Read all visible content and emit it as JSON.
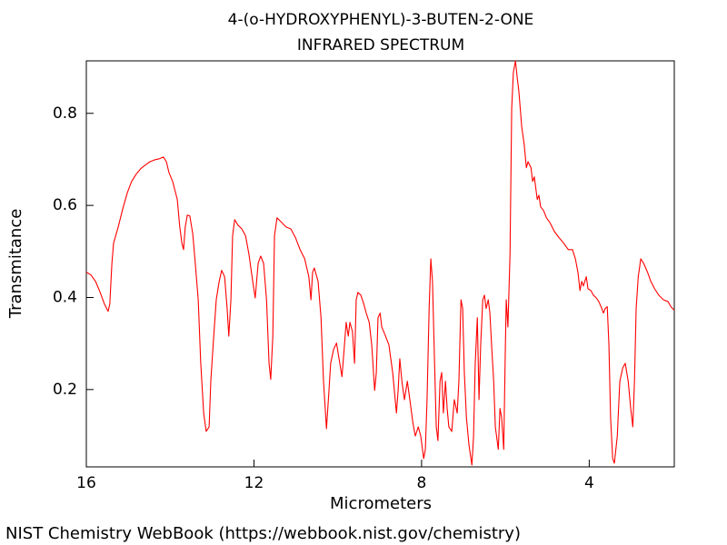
{
  "chart_data": {
    "type": "line",
    "title": "4-(o-HYDROXYPHENYL)-3-BUTEN-2-ONE",
    "subtitle": "INFRARED SPECTRUM",
    "x_label": "Micrometers",
    "y_label": "Transmitance",
    "color": "#ff0000",
    "xlim": [
      16,
      1.97
    ],
    "ylim": [
      0.032,
      0.914
    ],
    "xticks": [
      16,
      12,
      8,
      4
    ],
    "yticks": [
      0.2,
      0.4,
      0.6,
      0.8
    ],
    "x": [
      16.0,
      15.89,
      15.78,
      15.67,
      15.57,
      15.48,
      15.44,
      15.39,
      15.35,
      15.24,
      15.13,
      15.02,
      14.92,
      14.81,
      14.7,
      14.59,
      14.48,
      14.37,
      14.27,
      14.16,
      14.09,
      14.03,
      13.94,
      13.83,
      13.77,
      13.72,
      13.68,
      13.64,
      13.59,
      13.53,
      13.46,
      13.4,
      13.33,
      13.27,
      13.2,
      13.14,
      13.07,
      13.03,
      12.96,
      12.9,
      12.83,
      12.77,
      12.7,
      12.64,
      12.6,
      12.55,
      12.51,
      12.46,
      12.38,
      12.29,
      12.2,
      12.12,
      12.03,
      11.97,
      11.9,
      11.84,
      11.77,
      11.7,
      11.64,
      11.6,
      11.55,
      11.51,
      11.45,
      11.34,
      11.23,
      11.12,
      11.01,
      10.9,
      10.79,
      10.69,
      10.64,
      10.6,
      10.56,
      10.47,
      10.4,
      10.34,
      10.27,
      10.21,
      10.17,
      10.1,
      10.03,
      9.97,
      9.9,
      9.84,
      9.8,
      9.75,
      9.71,
      9.65,
      9.6,
      9.56,
      9.52,
      9.45,
      9.38,
      9.32,
      9.25,
      9.19,
      9.12,
      9.08,
      9.04,
      8.99,
      8.95,
      8.86,
      8.78,
      8.69,
      8.6,
      8.56,
      8.52,
      8.47,
      8.41,
      8.34,
      8.28,
      8.21,
      8.15,
      8.08,
      8.02,
      7.95,
      7.91,
      7.87,
      7.82,
      7.78,
      7.74,
      7.69,
      7.65,
      7.61,
      7.56,
      7.52,
      7.48,
      7.43,
      7.39,
      7.35,
      7.28,
      7.22,
      7.15,
      7.11,
      7.06,
      7.02,
      6.98,
      6.93,
      6.87,
      6.8,
      6.76,
      6.72,
      6.67,
      6.63,
      6.59,
      6.54,
      6.5,
      6.46,
      6.41,
      6.37,
      6.33,
      6.28,
      6.24,
      6.17,
      6.13,
      6.09,
      6.04,
      6.0,
      5.98,
      5.94,
      5.89,
      5.85,
      5.81,
      5.76,
      5.72,
      5.68,
      5.61,
      5.55,
      5.5,
      5.46,
      5.39,
      5.35,
      5.31,
      5.24,
      5.2,
      5.16,
      5.09,
      5.02,
      4.94,
      4.83,
      4.72,
      4.61,
      4.5,
      4.4,
      4.33,
      4.27,
      4.22,
      4.18,
      4.14,
      4.07,
      4.03,
      3.96,
      3.9,
      3.83,
      3.77,
      3.7,
      3.66,
      3.62,
      3.57,
      3.53,
      3.49,
      3.44,
      3.4,
      3.33,
      3.27,
      3.2,
      3.14,
      3.07,
      3.01,
      2.96,
      2.92,
      2.88,
      2.83,
      2.77,
      2.7,
      2.61,
      2.53,
      2.44,
      2.34,
      2.23,
      2.12,
      2.05,
      1.97
    ],
    "values": [
      0.455,
      0.449,
      0.435,
      0.411,
      0.386,
      0.37,
      0.386,
      0.474,
      0.518,
      0.553,
      0.593,
      0.628,
      0.652,
      0.668,
      0.68,
      0.688,
      0.695,
      0.699,
      0.701,
      0.705,
      0.695,
      0.672,
      0.652,
      0.613,
      0.553,
      0.518,
      0.504,
      0.553,
      0.579,
      0.577,
      0.538,
      0.474,
      0.395,
      0.257,
      0.149,
      0.109,
      0.119,
      0.218,
      0.316,
      0.395,
      0.435,
      0.459,
      0.445,
      0.376,
      0.316,
      0.395,
      0.534,
      0.569,
      0.557,
      0.549,
      0.534,
      0.494,
      0.435,
      0.399,
      0.474,
      0.49,
      0.474,
      0.395,
      0.257,
      0.222,
      0.316,
      0.534,
      0.573,
      0.563,
      0.553,
      0.549,
      0.53,
      0.504,
      0.484,
      0.445,
      0.395,
      0.455,
      0.464,
      0.435,
      0.356,
      0.218,
      0.115,
      0.198,
      0.257,
      0.287,
      0.301,
      0.267,
      0.228,
      0.297,
      0.346,
      0.316,
      0.346,
      0.326,
      0.257,
      0.395,
      0.411,
      0.405,
      0.386,
      0.366,
      0.346,
      0.297,
      0.198,
      0.237,
      0.356,
      0.366,
      0.336,
      0.316,
      0.297,
      0.237,
      0.149,
      0.198,
      0.267,
      0.218,
      0.178,
      0.218,
      0.178,
      0.129,
      0.099,
      0.119,
      0.099,
      0.05,
      0.07,
      0.178,
      0.376,
      0.484,
      0.435,
      0.257,
      0.119,
      0.089,
      0.218,
      0.237,
      0.149,
      0.218,
      0.159,
      0.119,
      0.109,
      0.178,
      0.149,
      0.218,
      0.395,
      0.376,
      0.237,
      0.139,
      0.08,
      0.036,
      0.099,
      0.257,
      0.356,
      0.178,
      0.297,
      0.395,
      0.405,
      0.376,
      0.395,
      0.366,
      0.297,
      0.218,
      0.119,
      0.07,
      0.159,
      0.139,
      0.07,
      0.297,
      0.395,
      0.336,
      0.494,
      0.81,
      0.889,
      0.914,
      0.879,
      0.849,
      0.77,
      0.731,
      0.682,
      0.695,
      0.682,
      0.652,
      0.662,
      0.613,
      0.622,
      0.597,
      0.589,
      0.573,
      0.563,
      0.543,
      0.53,
      0.518,
      0.504,
      0.504,
      0.484,
      0.455,
      0.415,
      0.435,
      0.425,
      0.445,
      0.419,
      0.415,
      0.405,
      0.399,
      0.391,
      0.376,
      0.366,
      0.376,
      0.38,
      0.297,
      0.139,
      0.05,
      0.04,
      0.099,
      0.218,
      0.247,
      0.257,
      0.218,
      0.159,
      0.119,
      0.218,
      0.376,
      0.445,
      0.484,
      0.474,
      0.455,
      0.435,
      0.419,
      0.405,
      0.395,
      0.391,
      0.38,
      0.372
    ]
  },
  "footer": "NIST Chemistry WebBook (https://webbook.nist.gov/chemistry)"
}
